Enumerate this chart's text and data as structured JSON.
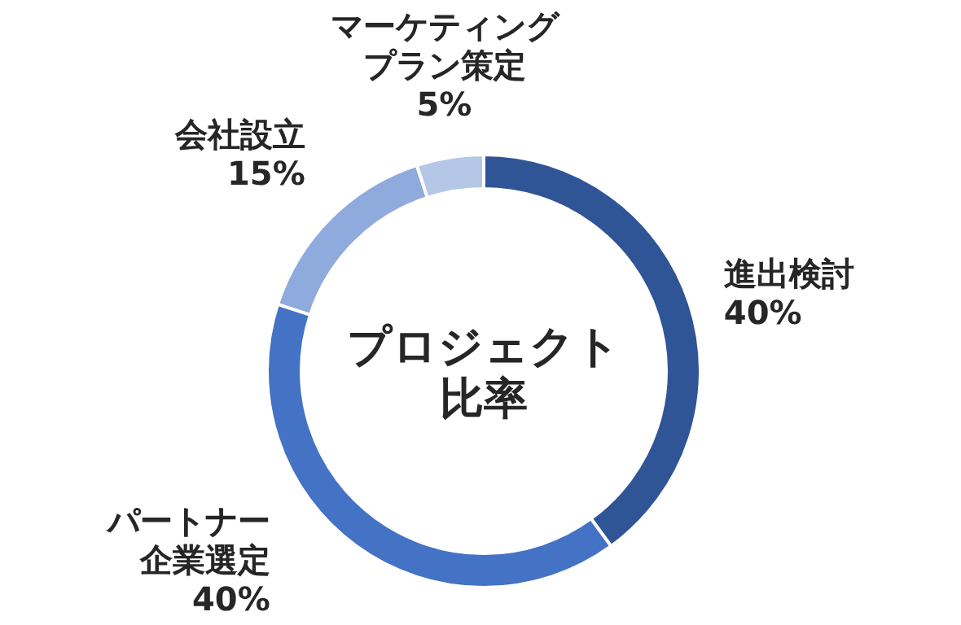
{
  "chart_data": {
    "type": "donut",
    "title": "プロジェクト比率",
    "categories": [
      "進出検討",
      "パートナー企業選定",
      "会社設立",
      "マーケティングプラン策定"
    ],
    "values": [
      40,
      40,
      15,
      5
    ],
    "value_labels": [
      "40%",
      "40%",
      "15%",
      "5%"
    ],
    "colors": [
      "#2f5597",
      "#4472c4",
      "#8faadc",
      "#b4c7e7"
    ],
    "data_labels": true
  }
}
